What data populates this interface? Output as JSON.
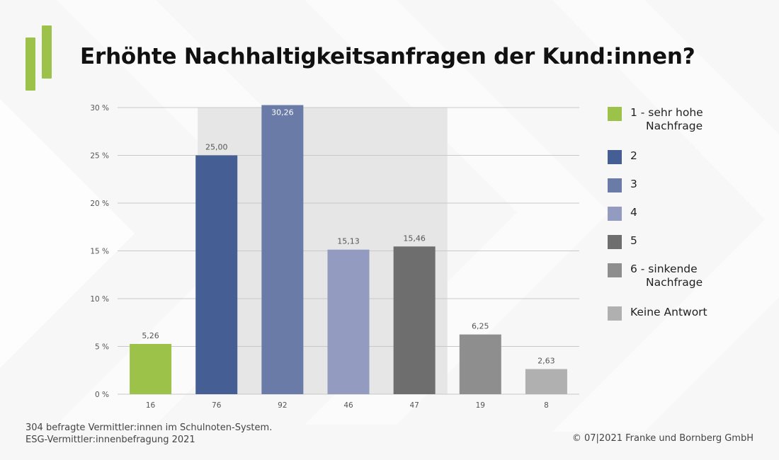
{
  "title": "Erhöhte Nachhaltigkeitsanfragen der Kund:innen?",
  "footnote": {
    "line1": "304 befragte Vermittler:innen im Schulnoten-System.",
    "line2": "ESG-Vermittler:innenbefragung 2021"
  },
  "copyright": "© 07|2021 Franke und Bornberg GmbH",
  "colors": {
    "brand_green": "#9cc24a",
    "highlight_band": "#e6e6e6",
    "gridline": "#c8c8c8"
  },
  "legend": [
    {
      "label": "1 - sehr hohe",
      "label2": "Nachfrage",
      "color": "#9cc24a"
    },
    {
      "label": "2",
      "color": "#455f94"
    },
    {
      "label": "3",
      "color": "#6b7ba8"
    },
    {
      "label": "4",
      "color": "#939bc0"
    },
    {
      "label": "5",
      "color": "#6e6e6e"
    },
    {
      "label": "6 - sinkende",
      "label2": "Nachfrage",
      "color": "#8e8e8e"
    },
    {
      "label": "Keine Antwort",
      "color": "#b0b0b0"
    }
  ],
  "chart_data": {
    "type": "bar",
    "categories": [
      "16",
      "76",
      "92",
      "46",
      "47",
      "19",
      "8"
    ],
    "values": [
      5.26,
      25.0,
      30.26,
      15.13,
      15.46,
      6.25,
      2.63
    ],
    "value_labels": [
      "5,26",
      "25,00",
      "30,26",
      "15,13",
      "15,46",
      "6,25",
      "2,63"
    ],
    "series_colors": [
      "#9cc24a",
      "#455f94",
      "#6b7ba8",
      "#939bc0",
      "#6e6e6e",
      "#8e8e8e",
      "#b0b0b0"
    ],
    "y_ticks": [
      0,
      5,
      10,
      15,
      20,
      25,
      30
    ],
    "y_tick_labels": [
      "0 %",
      "5 %",
      "10 %",
      "15 %",
      "20 %",
      "25 %",
      "30 %"
    ],
    "ylim": [
      0,
      30
    ],
    "highlight_categories": [
      "76",
      "92",
      "46",
      "47"
    ],
    "grid": true,
    "legend_position": "right"
  }
}
